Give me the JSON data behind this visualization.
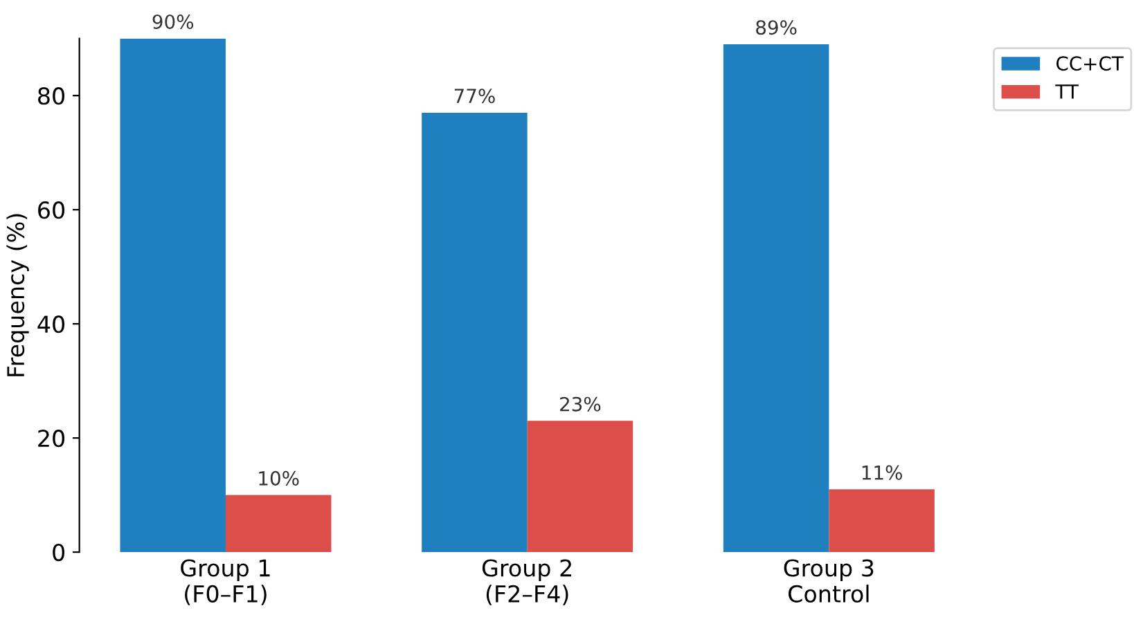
{
  "chart_data": {
    "type": "bar",
    "ylabel": "Frequency (%)",
    "categories": [
      "Group 1\n(F0–F1)",
      "Group 2\n(F2–F4)",
      "Group 3\nControl"
    ],
    "series": [
      {
        "name": "CC+CT",
        "color": "#1f7fbf",
        "values": [
          90,
          77,
          89
        ],
        "value_labels": [
          "90%",
          "77%",
          "89%"
        ]
      },
      {
        "name": "TT",
        "color": "#db4e4a",
        "values": [
          10,
          23,
          11
        ],
        "value_labels": [
          "10%",
          "23%",
          "11%"
        ]
      }
    ],
    "ylim": [
      0,
      90
    ],
    "yticks": [
      0,
      20,
      40,
      60,
      80
    ],
    "grid": false,
    "legend": "top right"
  }
}
